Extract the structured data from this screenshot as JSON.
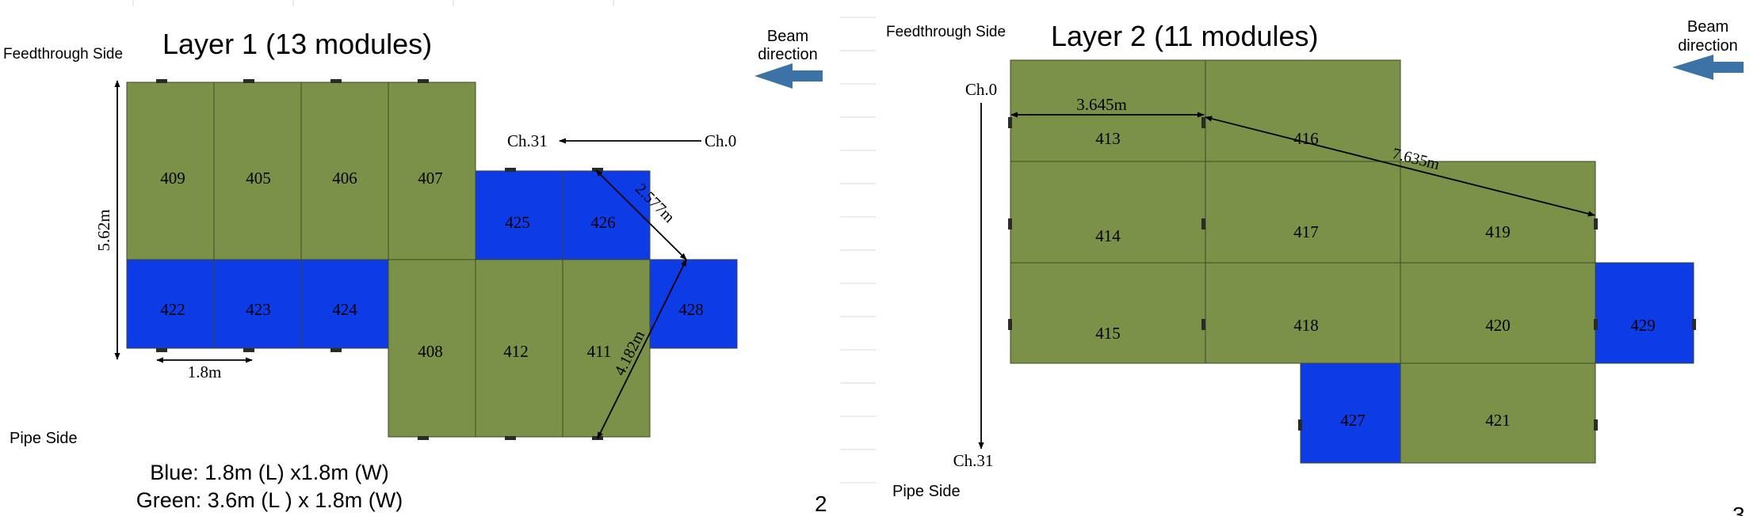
{
  "colors": {
    "green": "#7b9147",
    "blue": "#0d3be6",
    "arrow_blue": "#3b73a6",
    "line": "#000000",
    "rule": "#d9d9d9"
  },
  "layer1": {
    "feedthrough_label": "Feedthrough Side",
    "title": "Layer 1 (13 modules)",
    "beam_line1": "Beam",
    "beam_line2": "direction",
    "pipe_label": "Pipe Side",
    "ch_start": "Ch.31",
    "ch_end": "Ch.0",
    "height_dim": "5.62m",
    "width_dim": "1.8m",
    "diag_top": "2.577m",
    "diag_bottom": "4.182m",
    "legend_blue": "Blue: 1.8m (L) x1.8m (W)",
    "legend_green": "Green: 3.6m (L ) x 1.8m (W)",
    "page_number": "2",
    "modules": [
      "409",
      "405",
      "406",
      "407",
      "425",
      "426",
      "422",
      "423",
      "424",
      "408",
      "412",
      "411",
      "428"
    ]
  },
  "layer2": {
    "feedthrough_label": "Feedthrough Side",
    "title": "Layer 2 (11 modules)",
    "beam_line1": "Beam",
    "beam_line2": "direction",
    "pipe_label": "Pipe Side",
    "ch_top": "Ch.0",
    "ch_bottom": "Ch.31",
    "width_dim": "3.645m",
    "diag_dim": "7.635m",
    "page_number": "3",
    "modules": [
      "413",
      "416",
      "414",
      "417",
      "419",
      "415",
      "418",
      "420",
      "429",
      "427",
      "421"
    ]
  }
}
